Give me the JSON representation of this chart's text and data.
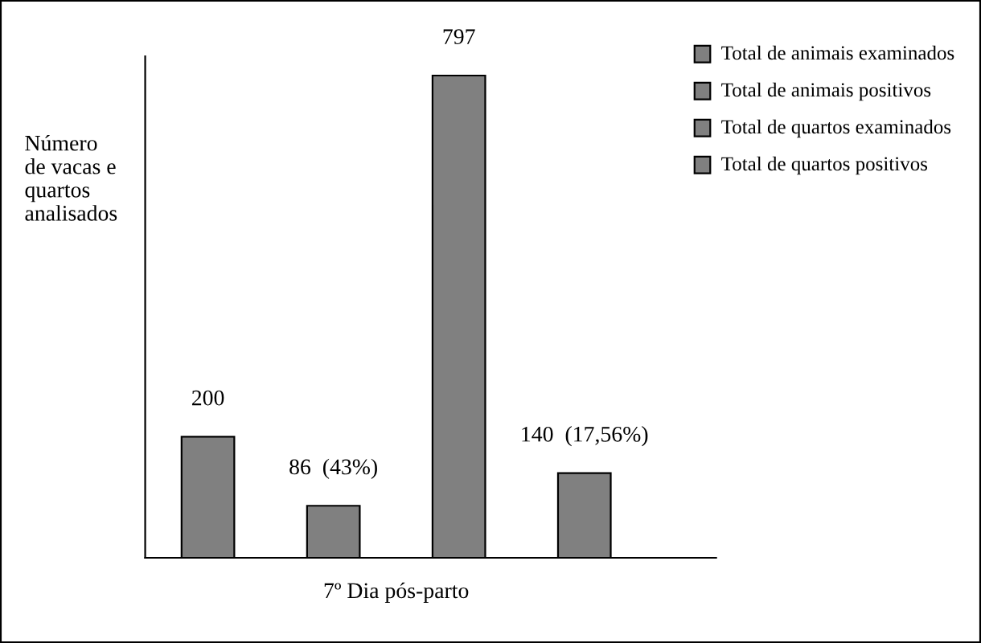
{
  "chart_data": {
    "type": "bar",
    "ylabel": "Número\nde vacas e\nquartos\nanalisados",
    "xlabel": "7º Dia pós-parto",
    "categories": [
      null,
      null,
      null,
      null
    ],
    "series": [
      {
        "color": "#808080",
        "values": [
          200,
          86,
          797,
          140
        ],
        "value_labels": [
          "200",
          "86  (43%)",
          "797",
          "140  (17,56%)"
        ]
      }
    ],
    "annotations": [
      "Total de animais examinados",
      "Total de animais positivos",
      "Total de quartos examinados",
      "Total de quartos positivos"
    ],
    "grid": false
  }
}
